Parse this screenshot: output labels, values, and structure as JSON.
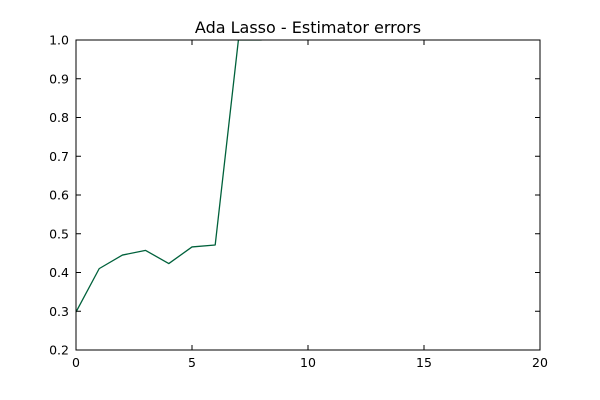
{
  "chart_data": {
    "type": "line",
    "title": "Ada Lasso - Estimator errors",
    "xlabel": "",
    "ylabel": "",
    "xlim": [
      0,
      20
    ],
    "ylim": [
      0.2,
      1.0
    ],
    "xticks": [
      0,
      5,
      10,
      15,
      20
    ],
    "yticks": [
      0.2,
      0.3,
      0.4,
      0.5,
      0.6,
      0.7,
      0.8,
      0.9,
      1.0
    ],
    "xtick_labels": [
      "0",
      "5",
      "10",
      "15",
      "20"
    ],
    "ytick_labels": [
      "0.2",
      "0.3",
      "0.4",
      "0.5",
      "0.6",
      "0.7",
      "0.8",
      "0.9",
      "1.0"
    ],
    "grid": false,
    "series": [
      {
        "color": "#00613b",
        "x": [
          0,
          1,
          2,
          3,
          4,
          5,
          6,
          7,
          8
        ],
        "y": [
          0.298,
          0.41,
          0.445,
          0.457,
          0.423,
          0.466,
          0.471,
          1.0,
          1.0
        ]
      }
    ]
  }
}
